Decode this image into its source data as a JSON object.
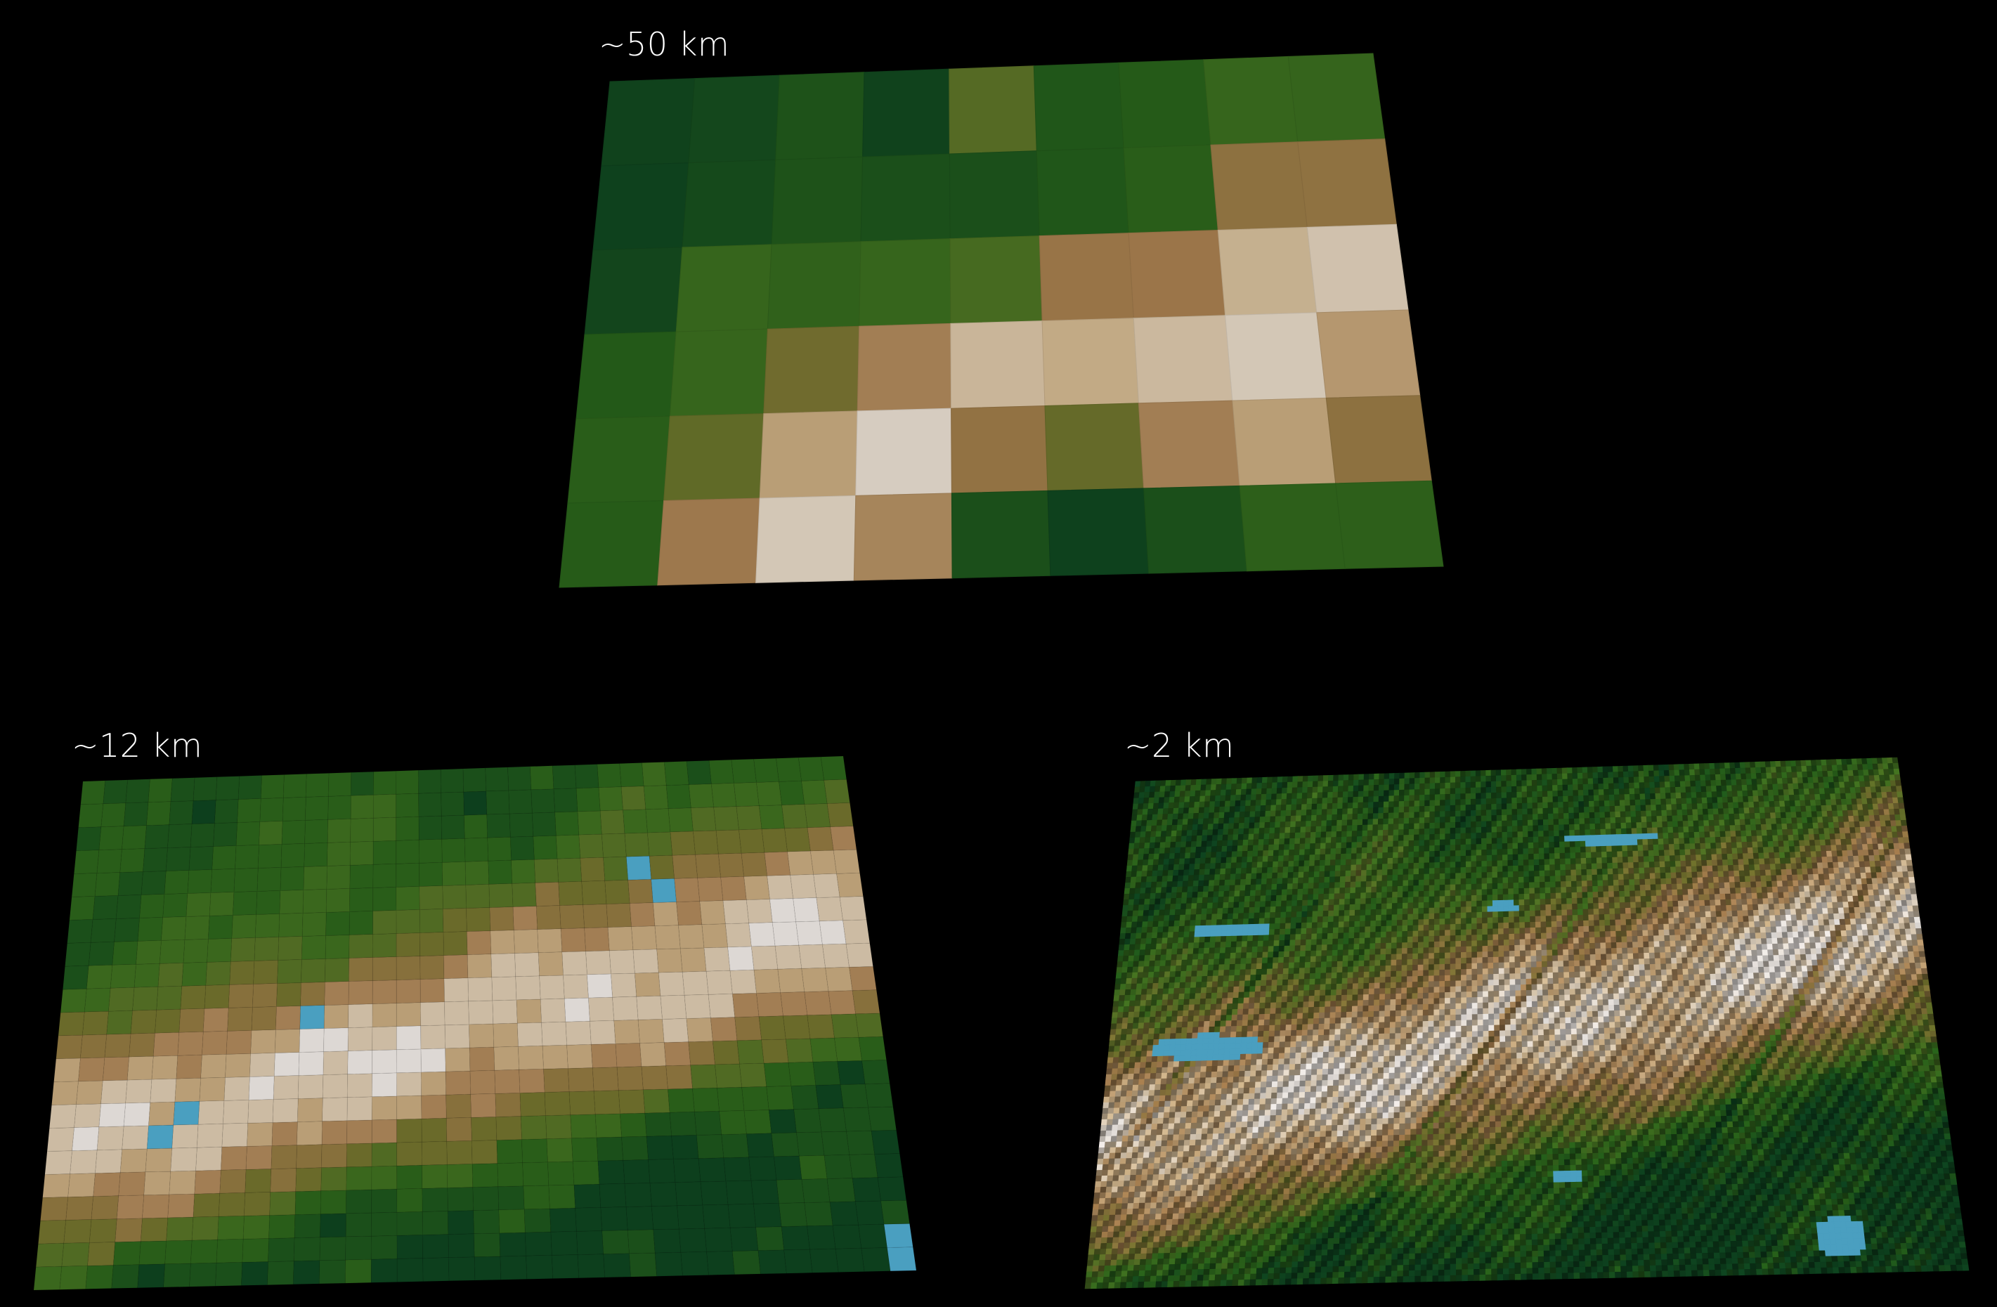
{
  "panels": [
    {
      "id": "coarse",
      "label": "~50 km",
      "grid": {
        "cols": 9,
        "rows": 6
      }
    },
    {
      "id": "medium",
      "label": "~12 km",
      "grid": {
        "cols": 34,
        "rows": 22
      }
    },
    {
      "id": "fine",
      "label": "~2 km",
      "grid": {
        "cols": 150,
        "rows": 90
      }
    }
  ],
  "palette": {
    "background": "#000000",
    "lowland_dark": "#0d3f1d",
    "lowland": "#245a18",
    "grass": "#3f6a1e",
    "olive": "#6a6a2a",
    "brown": "#9a7448",
    "tan": "#c1a882",
    "snow": "#ddd8d4",
    "water": "#4a9fc0"
  }
}
